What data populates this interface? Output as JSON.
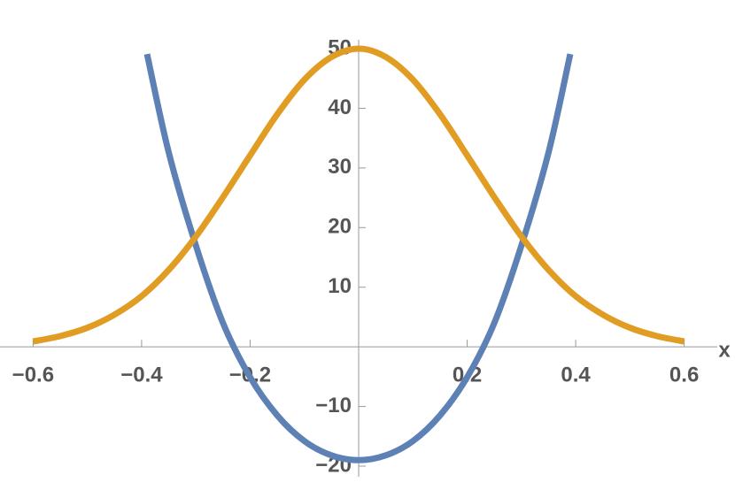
{
  "chart_data": {
    "type": "line",
    "x_label": "x",
    "xlim": [
      -0.661,
      0.661
    ],
    "ylim": [
      -20,
      50
    ],
    "xticks": [
      {
        "value": -0.6,
        "label": "−0.6"
      },
      {
        "value": -0.4,
        "label": "−0.4"
      },
      {
        "value": -0.2,
        "label": "−0.2"
      },
      0.2,
      0.4,
      0.6
    ],
    "yticks": [
      {
        "value": -20,
        "label": "−20"
      },
      {
        "value": -10,
        "label": "−10"
      },
      10,
      20,
      30,
      40,
      50
    ],
    "series": [
      {
        "color": "#5e81b5",
        "x": [
          -0.39,
          -0.35,
          -0.3,
          -0.25,
          -0.2,
          -0.15,
          -0.1,
          -0.05,
          0,
          0.05,
          0.1,
          0.15,
          0.2,
          0.25,
          0.3,
          0.35,
          0.39
        ],
        "values": [
          49.1,
          32.6,
          17,
          4,
          -5.1,
          -11.5,
          -15.8,
          -18.2,
          -19,
          -18.2,
          -15.8,
          -11.5,
          -5.1,
          4,
          17,
          32.6,
          49.1
        ]
      },
      {
        "color": "#e19c24",
        "x": [
          -0.6,
          -0.55,
          -0.5,
          -0.45,
          -0.4,
          -0.35,
          -0.3,
          -0.25,
          -0.2,
          -0.15,
          -0.1,
          -0.05,
          0,
          0.05,
          0.1,
          0.15,
          0.2,
          0.25,
          0.3,
          0.35,
          0.4,
          0.45,
          0.5,
          0.55,
          0.6
        ],
        "values": [
          0.9,
          1.8,
          3.2,
          5.4,
          8.5,
          12.9,
          18.5,
          25.1,
          32.1,
          39,
          44.8,
          48.6,
          50,
          48.6,
          44.8,
          39,
          32.1,
          25.1,
          18.5,
          12.9,
          8.5,
          5.4,
          3.2,
          1.8,
          0.9
        ]
      }
    ]
  }
}
